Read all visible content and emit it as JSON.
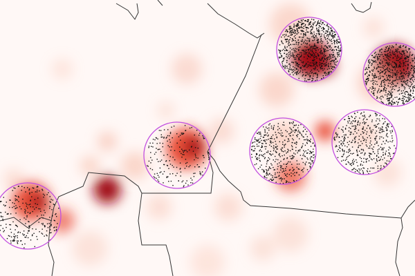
{
  "map": {
    "background_color": "#fff8f6",
    "heat_color_low": "#f7b9a6",
    "heat_color_mid": "#e8412a",
    "heat_color_high": "#a00f14",
    "circle_color": "#c24fe0",
    "border_color": "#333333",
    "point_color": "#111111"
  }
}
